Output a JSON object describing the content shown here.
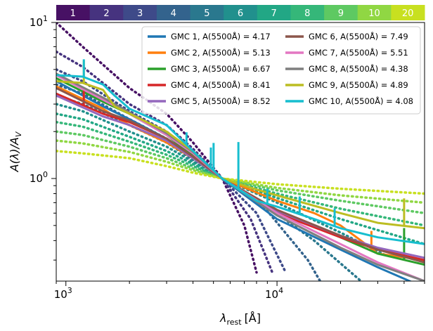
{
  "chart_data": {
    "type": "line",
    "xscale": "log",
    "yscale": "log",
    "xlim": [
      900,
      50000
    ],
    "ylim": [
      0.22,
      10
    ],
    "xlabel_main": "λ",
    "xlabel_sub": "rest",
    "xlabel_unit": "[Å]",
    "ylabel_main": "A(λ)/A",
    "ylabel_sub": "V",
    "x_ticks": [
      {
        "base": "10",
        "exp": "3",
        "value": 1000
      },
      {
        "base": "10",
        "exp": "4",
        "value": 10000
      }
    ],
    "y_ticks": [
      {
        "base": "10",
        "exp": "0",
        "value": 1
      },
      {
        "base": "10",
        "exp": "1",
        "value": 10
      }
    ],
    "colorbar": {
      "labels": [
        "1",
        "2",
        "3",
        "4",
        "5",
        "6",
        "7",
        "8",
        "9",
        "10",
        "20"
      ],
      "colors": [
        "#471164",
        "#46337f",
        "#3e4a89",
        "#33638d",
        "#2a788e",
        "#21908d",
        "#22a785",
        "#35b779",
        "#5ec962",
        "#90d743",
        "#c8e020"
      ]
    },
    "dotted_curves": [
      {
        "label": "1",
        "color": "#471164",
        "points": [
          [
            900,
            10.0
          ],
          [
            1200,
            7.0
          ],
          [
            2000,
            3.8
          ],
          [
            3000,
            2.6
          ],
          [
            4000,
            1.7
          ],
          [
            5500,
            1.0
          ],
          [
            7000,
            0.5
          ],
          [
            8000,
            0.25
          ]
        ]
      },
      {
        "label": "2",
        "color": "#46337f",
        "points": [
          [
            900,
            6.5
          ],
          [
            1200,
            5.2
          ],
          [
            2000,
            3.0
          ],
          [
            3000,
            2.2
          ],
          [
            4000,
            1.55
          ],
          [
            5500,
            1.0
          ],
          [
            7500,
            0.55
          ],
          [
            9500,
            0.25
          ]
        ]
      },
      {
        "label": "3",
        "color": "#3e4a89",
        "points": [
          [
            900,
            5.0
          ],
          [
            1200,
            4.2
          ],
          [
            2000,
            2.7
          ],
          [
            3000,
            2.0
          ],
          [
            4000,
            1.45
          ],
          [
            5500,
            1.0
          ],
          [
            8000,
            0.6
          ],
          [
            11000,
            0.25
          ]
        ]
      },
      {
        "label": "4",
        "color": "#33638d",
        "points": [
          [
            900,
            4.0
          ],
          [
            1200,
            3.5
          ],
          [
            2000,
            2.4
          ],
          [
            3000,
            1.8
          ],
          [
            4000,
            1.38
          ],
          [
            5500,
            1.0
          ],
          [
            9000,
            0.62
          ],
          [
            14000,
            0.3
          ],
          [
            16000,
            0.22
          ]
        ]
      },
      {
        "label": "5",
        "color": "#2a788e",
        "points": [
          [
            900,
            3.4
          ],
          [
            1200,
            3.0
          ],
          [
            2000,
            2.2
          ],
          [
            3000,
            1.7
          ],
          [
            4000,
            1.32
          ],
          [
            5500,
            1.0
          ],
          [
            9000,
            0.66
          ],
          [
            15000,
            0.4
          ],
          [
            25000,
            0.22
          ]
        ]
      },
      {
        "label": "6",
        "color": "#21908d",
        "points": [
          [
            900,
            3.0
          ],
          [
            1200,
            2.7
          ],
          [
            2000,
            2.0
          ],
          [
            3000,
            1.6
          ],
          [
            4000,
            1.28
          ],
          [
            5500,
            1.0
          ],
          [
            10000,
            0.7
          ],
          [
            20000,
            0.45
          ],
          [
            33000,
            0.32
          ]
        ]
      },
      {
        "label": "7",
        "color": "#22a785",
        "points": [
          [
            900,
            2.6
          ],
          [
            1200,
            2.4
          ],
          [
            2000,
            1.85
          ],
          [
            3000,
            1.5
          ],
          [
            4000,
            1.24
          ],
          [
            5500,
            1.0
          ],
          [
            10000,
            0.75
          ],
          [
            20000,
            0.55
          ],
          [
            50000,
            0.38
          ]
        ]
      },
      {
        "label": "8",
        "color": "#35b779",
        "points": [
          [
            900,
            2.3
          ],
          [
            1200,
            2.15
          ],
          [
            2000,
            1.72
          ],
          [
            3000,
            1.42
          ],
          [
            4000,
            1.2
          ],
          [
            5500,
            1.0
          ],
          [
            10000,
            0.8
          ],
          [
            20000,
            0.64
          ],
          [
            50000,
            0.5
          ]
        ]
      },
      {
        "label": "9",
        "color": "#5ec962",
        "points": [
          [
            900,
            2.0
          ],
          [
            1200,
            1.9
          ],
          [
            2000,
            1.6
          ],
          [
            3000,
            1.35
          ],
          [
            4000,
            1.16
          ],
          [
            5500,
            1.0
          ],
          [
            10000,
            0.84
          ],
          [
            20000,
            0.72
          ],
          [
            50000,
            0.6
          ]
        ]
      },
      {
        "label": "10",
        "color": "#90d743",
        "points": [
          [
            900,
            1.75
          ],
          [
            1200,
            1.68
          ],
          [
            2000,
            1.48
          ],
          [
            3000,
            1.28
          ],
          [
            4000,
            1.13
          ],
          [
            5500,
            1.0
          ],
          [
            10000,
            0.87
          ],
          [
            20000,
            0.78
          ],
          [
            50000,
            0.7
          ]
        ]
      },
      {
        "label": "20",
        "color": "#c8e020",
        "points": [
          [
            900,
            1.5
          ],
          [
            1200,
            1.45
          ],
          [
            2000,
            1.35
          ],
          [
            3000,
            1.2
          ],
          [
            4000,
            1.09
          ],
          [
            5500,
            1.0
          ],
          [
            10000,
            0.92
          ],
          [
            20000,
            0.86
          ],
          [
            50000,
            0.8
          ]
        ]
      }
    ],
    "series": [
      {
        "name": "GMC 1, A(5500Å) = 4.17",
        "color": "#1f77b4",
        "points": [
          [
            900,
            4.2
          ],
          [
            1500,
            2.9
          ],
          [
            2000,
            2.4
          ],
          [
            3000,
            1.8
          ],
          [
            4000,
            1.4
          ],
          [
            5500,
            1.0
          ],
          [
            10000,
            0.55
          ],
          [
            20000,
            0.35
          ],
          [
            30000,
            0.27
          ],
          [
            50000,
            0.2
          ]
        ],
        "spikes": []
      },
      {
        "name": "GMC 2, A(5500Å) = 5.13",
        "color": "#ff7f0e",
        "points": [
          [
            900,
            3.9
          ],
          [
            1500,
            2.8
          ],
          [
            1700,
            2.5
          ],
          [
            2000,
            2.2
          ],
          [
            3000,
            1.7
          ],
          [
            4000,
            1.35
          ],
          [
            5500,
            1.0
          ],
          [
            10000,
            0.72
          ],
          [
            15000,
            0.6
          ],
          [
            20000,
            0.5
          ],
          [
            25000,
            0.4
          ],
          [
            30000,
            0.33
          ],
          [
            50000,
            0.3
          ]
        ],
        "spikes": [
          [
            1216,
            1.2
          ],
          [
            6563,
            1.25
          ],
          [
            28000,
            1.3
          ]
        ]
      },
      {
        "name": "GMC 3, A(5500Å) = 6.67",
        "color": "#2ca02c",
        "points": [
          [
            900,
            4.4
          ],
          [
            1500,
            3.1
          ],
          [
            2000,
            2.6
          ],
          [
            3000,
            1.9
          ],
          [
            4000,
            1.4
          ],
          [
            5500,
            1.0
          ],
          [
            10000,
            0.62
          ],
          [
            20000,
            0.42
          ],
          [
            30000,
            0.33
          ],
          [
            50000,
            0.28
          ]
        ],
        "spikes": [
          [
            40000,
            1.6
          ]
        ]
      },
      {
        "name": "GMC 4, A(5500Å) = 8.41",
        "color": "#d62728",
        "points": [
          [
            900,
            3.5
          ],
          [
            1500,
            2.6
          ],
          [
            2000,
            2.3
          ],
          [
            3000,
            1.8
          ],
          [
            4000,
            1.38
          ],
          [
            5500,
            1.0
          ],
          [
            10000,
            0.6
          ],
          [
            20000,
            0.42
          ],
          [
            30000,
            0.35
          ],
          [
            50000,
            0.3
          ]
        ],
        "spikes": [
          [
            1216,
            1.3
          ]
        ]
      },
      {
        "name": "GMC 5, A(5500Å) = 8.52",
        "color": "#9467bd",
        "points": [
          [
            900,
            3.4
          ],
          [
            1500,
            2.5
          ],
          [
            2000,
            2.2
          ],
          [
            3000,
            1.75
          ],
          [
            4000,
            1.35
          ],
          [
            5500,
            1.0
          ],
          [
            10000,
            0.62
          ],
          [
            20000,
            0.43
          ],
          [
            30000,
            0.36
          ],
          [
            50000,
            0.31
          ]
        ],
        "spikes": []
      },
      {
        "name": "GMC 6, A(5500Å) = 7.49",
        "color": "#8c564b",
        "points": [
          [
            900,
            3.8
          ],
          [
            1500,
            2.7
          ],
          [
            2000,
            2.35
          ],
          [
            3000,
            1.8
          ],
          [
            4000,
            1.38
          ],
          [
            5500,
            1.0
          ],
          [
            10000,
            0.63
          ],
          [
            20000,
            0.43
          ],
          [
            30000,
            0.35
          ],
          [
            50000,
            0.29
          ]
        ],
        "spikes": []
      },
      {
        "name": "GMC 7, A(5500Å) = 5.51",
        "color": "#e377c2",
        "points": [
          [
            900,
            4.6
          ],
          [
            1500,
            3.2
          ],
          [
            2000,
            2.6
          ],
          [
            3000,
            1.9
          ],
          [
            4000,
            1.45
          ],
          [
            5500,
            1.0
          ],
          [
            10000,
            0.6
          ],
          [
            20000,
            0.38
          ],
          [
            30000,
            0.29
          ],
          [
            50000,
            0.22
          ]
        ],
        "spikes": []
      },
      {
        "name": "GMC 8, A(5500Å) = 4.38",
        "color": "#7f7f7f",
        "points": [
          [
            900,
            4.7
          ],
          [
            1500,
            3.3
          ],
          [
            2000,
            2.65
          ],
          [
            3000,
            1.95
          ],
          [
            4000,
            1.48
          ],
          [
            5500,
            1.0
          ],
          [
            10000,
            0.58
          ],
          [
            20000,
            0.36
          ],
          [
            30000,
            0.28
          ],
          [
            50000,
            0.22
          ]
        ],
        "spikes": []
      },
      {
        "name": "GMC 9, A(5500Å) = 4.89",
        "color": "#bcbd22",
        "points": [
          [
            900,
            4.2
          ],
          [
            1200,
            4.1
          ],
          [
            1500,
            3.7
          ],
          [
            1700,
            2.9
          ],
          [
            2000,
            2.6
          ],
          [
            3000,
            2.0
          ],
          [
            4000,
            1.5
          ],
          [
            5500,
            1.0
          ],
          [
            8000,
            0.85
          ],
          [
            10000,
            0.78
          ],
          [
            20000,
            0.6
          ],
          [
            30000,
            0.52
          ],
          [
            50000,
            0.48
          ]
        ],
        "spikes": [
          [
            1216,
            1.4
          ],
          [
            40000,
            1.5
          ]
        ]
      },
      {
        "name": "GMC 10, A(5500Å) = 4.08",
        "color": "#17becf",
        "points": [
          [
            900,
            4.6
          ],
          [
            1200,
            4.5
          ],
          [
            1500,
            4.0
          ],
          [
            1700,
            3.4
          ],
          [
            2000,
            2.8
          ],
          [
            3000,
            2.2
          ],
          [
            4000,
            1.5
          ],
          [
            5500,
            1.0
          ],
          [
            8000,
            0.72
          ],
          [
            10000,
            0.66
          ],
          [
            15000,
            0.55
          ],
          [
            20000,
            0.48
          ],
          [
            30000,
            0.42
          ],
          [
            50000,
            0.38
          ]
        ],
        "spikes": [
          [
            1216,
            1.3
          ],
          [
            3727,
            1.2
          ],
          [
            4861,
            1.35
          ],
          [
            5007,
            1.5
          ],
          [
            6563,
            2.0
          ],
          [
            9000,
            1.25
          ],
          [
            12800,
            1.3
          ],
          [
            18750,
            1.3
          ]
        ]
      }
    ]
  }
}
